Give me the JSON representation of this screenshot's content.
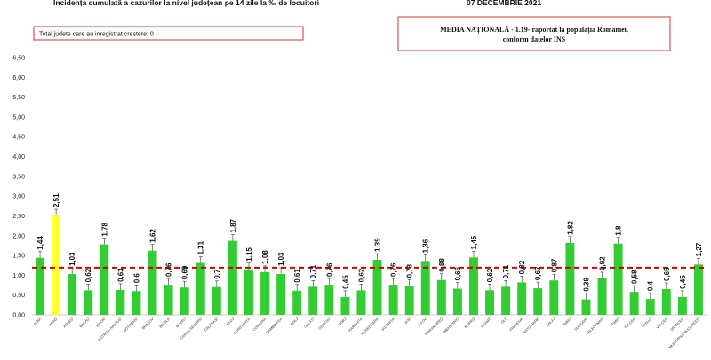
{
  "header": {
    "title": "Incidența cumulată a cazurilor la nivel județean pe 14 zile la ‰ de locuitori",
    "date": "07 DECEMBRIE 2021"
  },
  "boxes": {
    "left": "Total judete care au inregistrat crestere: 0",
    "right_line1": "MEDIA NAȚIONALĂ - 1.19-  raportat la populația României,",
    "right_line2": "conform datelor INS"
  },
  "colors": {
    "bar": "#33cc33",
    "highlight": "#ffff33",
    "reference_line": "#cc0000",
    "box_border": "#cc3333"
  },
  "chart_data": {
    "type": "bar",
    "title": "Incidența cumulată a cazurilor la nivel județean pe 14 zile la ‰ de locuitori",
    "ylim": [
      0,
      6.5
    ],
    "yticks": [
      "0,00",
      "0,50",
      "1,00",
      "1,50",
      "2,00",
      "2,50",
      "3,00",
      "3,50",
      "4,00",
      "4,50",
      "5,00",
      "5,50",
      "6,00",
      "6,50"
    ],
    "reference_value": 1.19,
    "highlight_index": 1,
    "grid": false,
    "categories": [
      "ALBA",
      "ARAD",
      "ARGEȘ",
      "BACĂU",
      "BIHOR",
      "BISTRIȚA-NĂSĂUD",
      "BOTOȘANI",
      "BRAȘOV",
      "BRĂILA",
      "BUZĂU",
      "CARAȘ-SEVERIN",
      "CĂLĂRAȘI",
      "CLUJ",
      "CONSTANȚA",
      "COVASNA",
      "DÂMBOVIȚA",
      "DOLJ",
      "GALAȚI",
      "GIURGIU",
      "GORJ",
      "HARGHITA",
      "HUNEDOARA",
      "IALOMIȚA",
      "IAȘI",
      "ILFOV",
      "MARAMUREȘ",
      "MEHEDINȚI",
      "MUREȘ",
      "NEAMȚ",
      "OLT",
      "PRAHOVA",
      "SATU MARE",
      "SĂLAJ",
      "SIBIU",
      "SUCEAVA",
      "TELEORMAN",
      "TIMIȘ",
      "TULCEA",
      "VASLUI",
      "VÂLCEA",
      "VRANCEA",
      "MUNICIPIUL BUCUREȘTI"
    ],
    "values": [
      1.44,
      2.51,
      1.03,
      0.62,
      1.78,
      0.63,
      0.6,
      1.62,
      0.76,
      0.69,
      1.31,
      0.7,
      1.87,
      1.15,
      1.08,
      1.03,
      0.61,
      0.71,
      0.76,
      0.45,
      0.62,
      1.39,
      0.76,
      0.73,
      1.36,
      0.88,
      0.66,
      1.45,
      0.62,
      0.71,
      0.82,
      0.67,
      0.87,
      1.82,
      0.39,
      0.92,
      1.8,
      0.58,
      0.4,
      0.65,
      0.45,
      1.27
    ],
    "value_labels": [
      "1,44",
      "2,51",
      "1,03",
      "0,62",
      "1,78",
      "0,63",
      "0,6",
      "1,62",
      "0,76",
      "0,69",
      "1,31",
      "0,7",
      "1,87",
      "1,15",
      "1,08",
      "1,03",
      "0,61",
      "0,71",
      "0,76",
      "0,45",
      "0,62",
      "1,39",
      "0,76",
      "0,73",
      "1,36",
      "0,88",
      "0,66",
      "1,45",
      "0,62",
      "0,71",
      "0,82",
      "0,67",
      "0,87",
      "1,82",
      "0,39",
      "0,92",
      "1,8",
      "0,58",
      "0,4",
      "0,65",
      "0,45",
      "1,27"
    ]
  }
}
